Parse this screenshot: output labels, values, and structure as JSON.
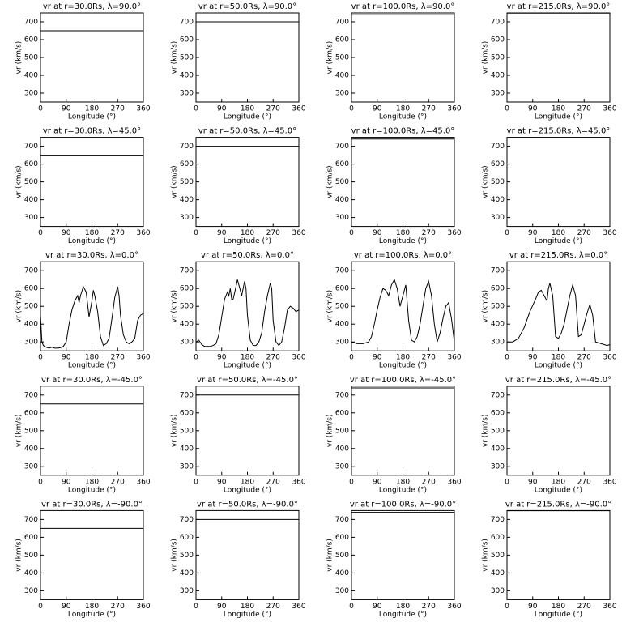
{
  "chart_data": [
    {
      "type": "line",
      "title": "vr at r=30.0Rs, λ=90.0°",
      "x_label": "Longitude (°)",
      "y_label": "vr (km/s)",
      "xlim": [
        0,
        360
      ],
      "xticks": [
        0,
        90,
        180,
        270,
        360
      ],
      "ylim": [
        250,
        750
      ],
      "yticks": [
        300,
        400,
        500,
        600,
        700
      ],
      "color": "#000000",
      "x": [
        0,
        360
      ],
      "values": [
        650,
        650
      ]
    },
    {
      "type": "line",
      "title": "vr at r=50.0Rs, λ=90.0°",
      "x_label": "Longitude (°)",
      "y_label": "vr (km/s)",
      "xlim": [
        0,
        360
      ],
      "xticks": [
        0,
        90,
        180,
        270,
        360
      ],
      "ylim": [
        250,
        750
      ],
      "yticks": [
        300,
        400,
        500,
        600,
        700
      ],
      "color": "#000000",
      "x": [
        0,
        360
      ],
      "values": [
        700,
        700
      ]
    },
    {
      "type": "line",
      "title": "vr at r=100.0Rs, λ=90.0°",
      "x_label": "Longitude (°)",
      "y_label": "vr (km/s)",
      "xlim": [
        0,
        360
      ],
      "xticks": [
        0,
        90,
        180,
        270,
        360
      ],
      "ylim": [
        250,
        750
      ],
      "yticks": [
        300,
        400,
        500,
        600,
        700
      ],
      "color": "#000000",
      "x": [
        0,
        360
      ],
      "values": [
        740,
        740
      ]
    },
    {
      "type": "line",
      "title": "vr at r=215.0Rs, λ=90.0°",
      "x_label": "Longitude (°)",
      "y_label": "vr (km/s)",
      "xlim": [
        0,
        360
      ],
      "xticks": [
        0,
        90,
        180,
        270,
        360
      ],
      "ylim": [
        250,
        750
      ],
      "yticks": [
        300,
        400,
        500,
        600,
        700
      ],
      "color": "#000000",
      "x": [
        0,
        360
      ],
      "values": [
        749,
        749
      ]
    },
    {
      "type": "line",
      "title": "vr at r=30.0Rs, λ=45.0°",
      "x_label": "Longitude (°)",
      "y_label": "vr (km/s)",
      "xlim": [
        0,
        360
      ],
      "xticks": [
        0,
        90,
        180,
        270,
        360
      ],
      "ylim": [
        250,
        750
      ],
      "yticks": [
        300,
        400,
        500,
        600,
        700
      ],
      "color": "#000000",
      "x": [
        0,
        360
      ],
      "values": [
        650,
        650
      ]
    },
    {
      "type": "line",
      "title": "vr at r=50.0Rs, λ=45.0°",
      "x_label": "Longitude (°)",
      "y_label": "vr (km/s)",
      "xlim": [
        0,
        360
      ],
      "xticks": [
        0,
        90,
        180,
        270,
        360
      ],
      "ylim": [
        250,
        750
      ],
      "yticks": [
        300,
        400,
        500,
        600,
        700
      ],
      "color": "#000000",
      "x": [
        0,
        360
      ],
      "values": [
        700,
        700
      ]
    },
    {
      "type": "line",
      "title": "vr at r=100.0Rs, λ=45.0°",
      "x_label": "Longitude (°)",
      "y_label": "vr (km/s)",
      "xlim": [
        0,
        360
      ],
      "xticks": [
        0,
        90,
        180,
        270,
        360
      ],
      "ylim": [
        250,
        750
      ],
      "yticks": [
        300,
        400,
        500,
        600,
        700
      ],
      "color": "#000000",
      "x": [
        0,
        360
      ],
      "values": [
        740,
        740
      ]
    },
    {
      "type": "line",
      "title": "vr at r=215.0Rs, λ=45.0°",
      "x_label": "Longitude (°)",
      "y_label": "vr (km/s)",
      "xlim": [
        0,
        360
      ],
      "xticks": [
        0,
        90,
        180,
        270,
        360
      ],
      "ylim": [
        250,
        750
      ],
      "yticks": [
        300,
        400,
        500,
        600,
        700
      ],
      "color": "#000000",
      "x": [
        0,
        360
      ],
      "values": [
        749,
        749
      ]
    },
    {
      "type": "line",
      "title": "vr at r=30.0Rs, λ=0.0°",
      "x_label": "Longitude (°)",
      "y_label": "vr (km/s)",
      "xlim": [
        0,
        360
      ],
      "xticks": [
        0,
        90,
        180,
        270,
        360
      ],
      "ylim": [
        250,
        750
      ],
      "yticks": [
        300,
        400,
        500,
        600,
        700
      ],
      "color": "#000000",
      "x": [
        0,
        5,
        10,
        20,
        30,
        40,
        50,
        60,
        70,
        80,
        90,
        100,
        110,
        120,
        130,
        135,
        140,
        150,
        160,
        170,
        180,
        185,
        190,
        200,
        210,
        220,
        230,
        240,
        250,
        260,
        270,
        275,
        280,
        290,
        300,
        310,
        320,
        330,
        340,
        350,
        360
      ],
      "values": [
        450,
        300,
        280,
        270,
        265,
        270,
        265,
        265,
        268,
        275,
        300,
        400,
        480,
        530,
        560,
        520,
        560,
        610,
        580,
        440,
        530,
        590,
        560,
        470,
        330,
        280,
        290,
        320,
        430,
        550,
        610,
        560,
        450,
        340,
        300,
        290,
        300,
        320,
        420,
        450,
        460
      ]
    },
    {
      "type": "line",
      "title": "vr at r=50.0Rs, λ=0.0°",
      "x_label": "Longitude (°)",
      "y_label": "vr (km/s)",
      "xlim": [
        0,
        360
      ],
      "xticks": [
        0,
        90,
        180,
        270,
        360
      ],
      "ylim": [
        250,
        750
      ],
      "yticks": [
        300,
        400,
        500,
        600,
        700
      ],
      "color": "#000000",
      "x": [
        0,
        10,
        20,
        30,
        40,
        50,
        60,
        70,
        80,
        90,
        100,
        110,
        115,
        120,
        125,
        130,
        140,
        145,
        150,
        160,
        170,
        175,
        180,
        190,
        200,
        210,
        220,
        230,
        240,
        250,
        260,
        265,
        270,
        280,
        290,
        300,
        310,
        320,
        330,
        340,
        350,
        360
      ],
      "values": [
        300,
        310,
        285,
        275,
        275,
        275,
        280,
        290,
        340,
        440,
        540,
        580,
        560,
        600,
        540,
        540,
        610,
        650,
        620,
        560,
        640,
        600,
        450,
        310,
        280,
        280,
        300,
        350,
        470,
        560,
        630,
        600,
        420,
        300,
        280,
        300,
        380,
        480,
        500,
        490,
        470,
        480
      ]
    },
    {
      "type": "line",
      "title": "vr at r=100.0Rs, λ=0.0°",
      "x_label": "Longitude (°)",
      "y_label": "vr (km/s)",
      "xlim": [
        0,
        360
      ],
      "xticks": [
        0,
        90,
        180,
        270,
        360
      ],
      "ylim": [
        250,
        750
      ],
      "yticks": [
        300,
        400,
        500,
        600,
        700
      ],
      "color": "#000000",
      "x": [
        0,
        20,
        40,
        60,
        70,
        80,
        90,
        100,
        110,
        120,
        130,
        140,
        150,
        160,
        170,
        180,
        190,
        200,
        210,
        220,
        230,
        240,
        250,
        260,
        270,
        280,
        290,
        300,
        310,
        320,
        330,
        340,
        350,
        360
      ],
      "values": [
        300,
        290,
        290,
        300,
        330,
        400,
        480,
        550,
        600,
        590,
        560,
        620,
        650,
        600,
        500,
        560,
        620,
        420,
        310,
        300,
        330,
        400,
        500,
        600,
        640,
        560,
        400,
        300,
        350,
        430,
        500,
        520,
        430,
        300
      ]
    },
    {
      "type": "line",
      "title": "vr at r=215.0Rs, λ=0.0°",
      "x_label": "Longitude (°)",
      "y_label": "vr (km/s)",
      "xlim": [
        0,
        360
      ],
      "xticks": [
        0,
        90,
        180,
        270,
        360
      ],
      "ylim": [
        250,
        750
      ],
      "yticks": [
        300,
        400,
        500,
        600,
        700
      ],
      "color": "#000000",
      "x": [
        0,
        20,
        40,
        60,
        80,
        100,
        110,
        120,
        130,
        140,
        145,
        150,
        160,
        170,
        180,
        190,
        200,
        210,
        220,
        230,
        240,
        250,
        260,
        270,
        280,
        290,
        300,
        310,
        330,
        350,
        360
      ],
      "values": [
        300,
        300,
        320,
        380,
        470,
        540,
        580,
        590,
        560,
        530,
        600,
        630,
        560,
        330,
        320,
        350,
        400,
        480,
        560,
        620,
        560,
        330,
        340,
        400,
        460,
        510,
        450,
        300,
        290,
        280,
        285
      ]
    },
    {
      "type": "line",
      "title": "vr at r=30.0Rs, λ=-45.0°",
      "x_label": "Longitude (°)",
      "y_label": "vr (km/s)",
      "xlim": [
        0,
        360
      ],
      "xticks": [
        0,
        90,
        180,
        270,
        360
      ],
      "ylim": [
        250,
        750
      ],
      "yticks": [
        300,
        400,
        500,
        600,
        700
      ],
      "color": "#000000",
      "x": [
        0,
        360
      ],
      "values": [
        650,
        650
      ]
    },
    {
      "type": "line",
      "title": "vr at r=50.0Rs, λ=-45.0°",
      "x_label": "Longitude (°)",
      "y_label": "vr (km/s)",
      "xlim": [
        0,
        360
      ],
      "xticks": [
        0,
        90,
        180,
        270,
        360
      ],
      "ylim": [
        250,
        750
      ],
      "yticks": [
        300,
        400,
        500,
        600,
        700
      ],
      "color": "#000000",
      "x": [
        0,
        360
      ],
      "values": [
        700,
        700
      ]
    },
    {
      "type": "line",
      "title": "vr at r=100.0Rs, λ=-45.0°",
      "x_label": "Longitude (°)",
      "y_label": "vr (km/s)",
      "xlim": [
        0,
        360
      ],
      "xticks": [
        0,
        90,
        180,
        270,
        360
      ],
      "ylim": [
        250,
        750
      ],
      "yticks": [
        300,
        400,
        500,
        600,
        700
      ],
      "color": "#000000",
      "x": [
        0,
        360
      ],
      "values": [
        740,
        740
      ]
    },
    {
      "type": "line",
      "title": "vr at r=215.0Rs, λ=-45.0°",
      "x_label": "Longitude (°)",
      "y_label": "vr (km/s)",
      "xlim": [
        0,
        360
      ],
      "xticks": [
        0,
        90,
        180,
        270,
        360
      ],
      "ylim": [
        250,
        750
      ],
      "yticks": [
        300,
        400,
        500,
        600,
        700
      ],
      "color": "#000000",
      "x": [
        0,
        360
      ],
      "values": [
        749,
        749
      ]
    },
    {
      "type": "line",
      "title": "vr at r=30.0Rs, λ=-90.0°",
      "x_label": "Longitude (°)",
      "y_label": "vr (km/s)",
      "xlim": [
        0,
        360
      ],
      "xticks": [
        0,
        90,
        180,
        270,
        360
      ],
      "ylim": [
        250,
        750
      ],
      "yticks": [
        300,
        400,
        500,
        600,
        700
      ],
      "color": "#000000",
      "x": [
        0,
        360
      ],
      "values": [
        650,
        650
      ]
    },
    {
      "type": "line",
      "title": "vr at r=50.0Rs, λ=-90.0°",
      "x_label": "Longitude (°)",
      "y_label": "vr (km/s)",
      "xlim": [
        0,
        360
      ],
      "xticks": [
        0,
        90,
        180,
        270,
        360
      ],
      "ylim": [
        250,
        750
      ],
      "yticks": [
        300,
        400,
        500,
        600,
        700
      ],
      "color": "#000000",
      "x": [
        0,
        360
      ],
      "values": [
        700,
        700
      ]
    },
    {
      "type": "line",
      "title": "vr at r=100.0Rs, λ=-90.0°",
      "x_label": "Longitude (°)",
      "y_label": "vr (km/s)",
      "xlim": [
        0,
        360
      ],
      "xticks": [
        0,
        90,
        180,
        270,
        360
      ],
      "ylim": [
        250,
        750
      ],
      "yticks": [
        300,
        400,
        500,
        600,
        700
      ],
      "color": "#000000",
      "x": [
        0,
        360
      ],
      "values": [
        740,
        740
      ]
    },
    {
      "type": "line",
      "title": "vr at r=215.0Rs, λ=-90.0°",
      "x_label": "Longitude (°)",
      "y_label": "vr (km/s)",
      "xlim": [
        0,
        360
      ],
      "xticks": [
        0,
        90,
        180,
        270,
        360
      ],
      "ylim": [
        250,
        750
      ],
      "yticks": [
        300,
        400,
        500,
        600,
        700
      ],
      "color": "#000000",
      "x": [
        0,
        360
      ],
      "values": [
        749,
        749
      ]
    }
  ]
}
